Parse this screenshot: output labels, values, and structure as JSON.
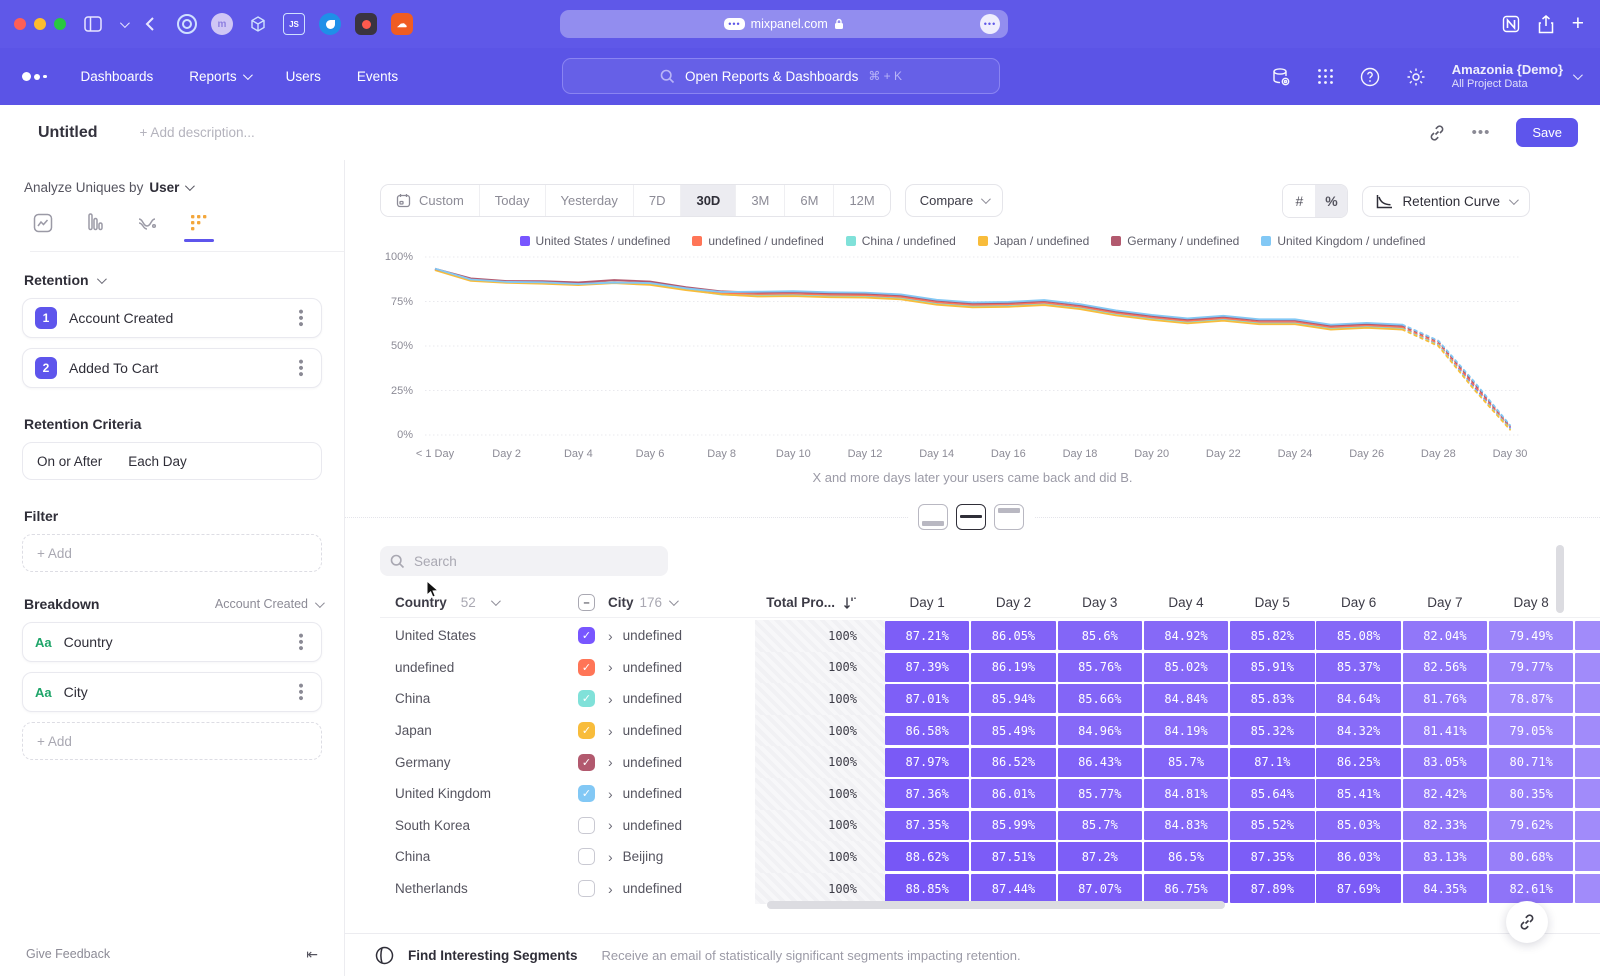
{
  "browser": {
    "url": "mixpanel.com",
    "url_badge": "•••"
  },
  "nav": {
    "items": [
      "Dashboards",
      "Reports",
      "Users",
      "Events"
    ],
    "search_placeholder": "Open Reports & Dashboards",
    "search_shortcut": "⌘ + K",
    "project_name": "Amazonia {Demo}",
    "project_scope": "All Project Data"
  },
  "header": {
    "title": "Untitled",
    "description_placeholder": "+ Add description...",
    "save_label": "Save"
  },
  "sidebar": {
    "analyze_label": "Analyze Uniques by",
    "analyze_value": "User",
    "retention_section": "Retention",
    "steps": [
      {
        "num": "1",
        "label": "Account Created"
      },
      {
        "num": "2",
        "label": "Added To Cart"
      }
    ],
    "criteria_label": "Retention Criteria",
    "criteria_value_1": "On or After",
    "criteria_value_2": "Each Day",
    "filter_label": "Filter",
    "add_label": "+ Add",
    "breakdown_label": "Breakdown",
    "breakdown_event": "Account Created",
    "breakdowns": [
      {
        "type": "Aa",
        "label": "Country"
      },
      {
        "type": "Aa",
        "label": "City"
      }
    ],
    "give_feedback": "Give Feedback"
  },
  "toolbar": {
    "ranges": [
      "Custom",
      "Today",
      "Yesterday",
      "7D",
      "30D",
      "3M",
      "6M",
      "12M"
    ],
    "active_range": "30D",
    "compare_label": "Compare",
    "count_toggle": "#",
    "percent_toggle": "%",
    "chart_type": "Retention Curve"
  },
  "chart_data": {
    "type": "line",
    "x_labels": [
      "< 1 Day",
      "Day 2",
      "Day 4",
      "Day 6",
      "Day 8",
      "Day 10",
      "Day 12",
      "Day 14",
      "Day 16",
      "Day 18",
      "Day 20",
      "Day 22",
      "Day 24",
      "Day 26",
      "Day 28",
      "Day 30"
    ],
    "y_ticks": [
      "100%",
      "75%",
      "50%",
      "25%",
      "0%"
    ],
    "ylim": [
      0,
      100
    ],
    "x_days": 30,
    "dashed_from_index": 27,
    "series": [
      {
        "name": "United States / undefined",
        "color": "#7856FF",
        "values": [
          93,
          87.21,
          86.05,
          85.6,
          84.92,
          85.82,
          85.08,
          82.04,
          79.49,
          78.8,
          79,
          78.4,
          78.2,
          77.2,
          74.2,
          72.7,
          73,
          74,
          71.7,
          68.2,
          65.7,
          63.7,
          65.2,
          63.2,
          63.2,
          60.2,
          61.2,
          60.2,
          51,
          27,
          4
        ]
      },
      {
        "name": "undefined / undefined",
        "color": "#FF7557",
        "values": [
          93.2,
          87.39,
          86.19,
          85.76,
          85.02,
          85.91,
          85.37,
          82.56,
          79.77,
          79.1,
          79.3,
          78.7,
          78.5,
          77.5,
          74.5,
          73,
          73.3,
          74.3,
          72,
          68.5,
          66,
          64,
          65.5,
          63.5,
          63.5,
          60.5,
          61.5,
          60.5,
          51.5,
          28,
          4.5
        ]
      },
      {
        "name": "China / undefined",
        "color": "#80E1D9",
        "values": [
          92.8,
          87.01,
          85.94,
          85.66,
          84.84,
          85.83,
          84.64,
          81.76,
          78.87,
          78.2,
          78.4,
          77.8,
          77.6,
          76.6,
          73.6,
          72.1,
          72.4,
          73.4,
          71.1,
          67.6,
          65.1,
          63.1,
          64.6,
          62.6,
          62.6,
          59.6,
          60.6,
          59.6,
          50.5,
          26,
          3.5
        ]
      },
      {
        "name": "Japan / undefined",
        "color": "#F8BC3B",
        "values": [
          92.6,
          86.58,
          85.49,
          84.96,
          84.19,
          85.32,
          84.32,
          81.41,
          79.05,
          77.8,
          78,
          77.4,
          77.2,
          76.2,
          73.2,
          71.7,
          72,
          73,
          70.7,
          67.2,
          64.7,
          62.7,
          64.2,
          62.2,
          62.2,
          59.2,
          60.2,
          59.2,
          50,
          25.5,
          3
        ]
      },
      {
        "name": "Germany / undefined",
        "color": "#B2596E",
        "values": [
          93.4,
          87.97,
          86.52,
          86.43,
          85.7,
          87.1,
          86.25,
          83.05,
          80.71,
          80,
          80.2,
          79.6,
          79.4,
          78.4,
          75.4,
          73.9,
          74.2,
          75.2,
          72.9,
          69.4,
          66.9,
          64.9,
          66.4,
          64.4,
          64.4,
          61.4,
          62.4,
          61.4,
          52.5,
          29,
          5
        ]
      },
      {
        "name": "United Kingdom / undefined",
        "color": "#82C8F5",
        "values": [
          93.5,
          87.36,
          86.01,
          85.77,
          84.81,
          85.64,
          85.41,
          82.42,
          80.35,
          80.5,
          80.8,
          80.2,
          80,
          79,
          76,
          74.5,
          74.8,
          75.8,
          73.5,
          70,
          67.5,
          65.5,
          67,
          65,
          65,
          62,
          63,
          62,
          53,
          30,
          5.5
        ]
      }
    ]
  },
  "caption": "X and more days later your users came back and did B.",
  "table": {
    "search_placeholder": "Search",
    "country_header": "Country",
    "country_count": "52",
    "city_header": "City",
    "city_count": "176",
    "total_header": "Total Pro...",
    "day_headers": [
      "Day 1",
      "Day 2",
      "Day 3",
      "Day 4",
      "Day 5",
      "Day 6",
      "Day 7",
      "Day 8"
    ],
    "rows": [
      {
        "country": "United States",
        "checked": true,
        "color": "#7856FF",
        "city": "undefined",
        "total": "100%",
        "days": [
          "87.21%",
          "86.05%",
          "85.6%",
          "84.92%",
          "85.82%",
          "85.08%",
          "82.04%",
          "79.49%"
        ]
      },
      {
        "country": "undefined",
        "checked": true,
        "color": "#FF7557",
        "city": "undefined",
        "total": "100%",
        "days": [
          "87.39%",
          "86.19%",
          "85.76%",
          "85.02%",
          "85.91%",
          "85.37%",
          "82.56%",
          "79.77%"
        ]
      },
      {
        "country": "China",
        "checked": true,
        "color": "#80E1D9",
        "city": "undefined",
        "total": "100%",
        "days": [
          "87.01%",
          "85.94%",
          "85.66%",
          "84.84%",
          "85.83%",
          "84.64%",
          "81.76%",
          "78.87%"
        ]
      },
      {
        "country": "Japan",
        "checked": true,
        "color": "#F8BC3B",
        "city": "undefined",
        "total": "100%",
        "days": [
          "86.58%",
          "85.49%",
          "84.96%",
          "84.19%",
          "85.32%",
          "84.32%",
          "81.41%",
          "79.05%"
        ]
      },
      {
        "country": "Germany",
        "checked": true,
        "color": "#B2596E",
        "city": "undefined",
        "total": "100%",
        "days": [
          "87.97%",
          "86.52%",
          "86.43%",
          "85.7%",
          "87.1%",
          "86.25%",
          "83.05%",
          "80.71%"
        ]
      },
      {
        "country": "United Kingdom",
        "checked": true,
        "color": "#82C8F5",
        "city": "undefined",
        "total": "100%",
        "days": [
          "87.36%",
          "86.01%",
          "85.77%",
          "84.81%",
          "85.64%",
          "85.41%",
          "82.42%",
          "80.35%"
        ]
      },
      {
        "country": "South Korea",
        "checked": false,
        "color": "",
        "city": "undefined",
        "total": "100%",
        "days": [
          "87.35%",
          "85.99%",
          "85.7%",
          "84.83%",
          "85.52%",
          "85.03%",
          "82.33%",
          "79.62%"
        ]
      },
      {
        "country": "China",
        "checked": false,
        "color": "",
        "city": "Beijing",
        "total": "100%",
        "days": [
          "88.62%",
          "87.51%",
          "87.2%",
          "86.5%",
          "87.35%",
          "86.03%",
          "83.13%",
          "80.68%"
        ]
      },
      {
        "country": "Netherlands",
        "checked": false,
        "color": "",
        "city": "undefined",
        "total": "100%",
        "days": [
          "88.85%",
          "87.44%",
          "87.07%",
          "86.75%",
          "87.89%",
          "87.69%",
          "84.35%",
          "82.61%"
        ]
      }
    ]
  },
  "footer": {
    "title": "Find Interesting Segments",
    "subtitle": "Receive an email of statistically significant segments impacting retention."
  }
}
